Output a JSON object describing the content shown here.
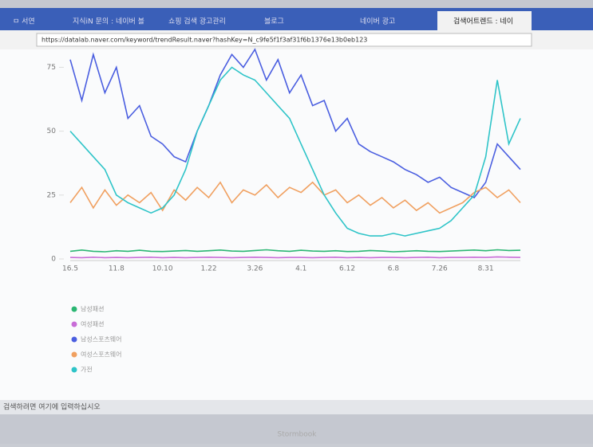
{
  "browser": {
    "tabs": [
      "ㅁ 서연",
      "지식iN 문의 : 네이버 블",
      "쇼핑 검색 광고관리",
      "블로그",
      "네이버 광고",
      "검색어트렌드 : 네이"
    ],
    "url": "https://datalab.naver.com/keyword/trendResult.naver?hashKey=N_c9fe5f1f3af31f6b1376e13b0eb123"
  },
  "taskbar": {
    "search": "검색하려면 여기에 입력하십시오"
  },
  "bezel": {
    "brand": "Stormbook"
  },
  "chart_data": {
    "type": "line",
    "categories": [
      "16.5",
      null,
      null,
      null,
      "11.8",
      null,
      null,
      null,
      "10.10",
      null,
      null,
      null,
      "1.22",
      null,
      null,
      null,
      "3.26",
      null,
      null,
      null,
      "4.1",
      null,
      null,
      null,
      "6.12",
      null,
      null,
      null,
      "6.8",
      null,
      null,
      null,
      "7.26",
      null,
      null,
      null,
      "8.31",
      null,
      null,
      null
    ],
    "series": [
      {
        "name": "남성패션",
        "color": "#2bb673",
        "values": [
          3,
          3.5,
          3,
          2.8,
          3.2,
          3,
          3.4,
          3,
          2.9,
          3.1,
          3.3,
          3,
          3.2,
          3.5,
          3.1,
          3,
          3.3,
          3.6,
          3.2,
          3,
          3.4,
          3.1,
          3,
          3.2,
          2.9,
          3,
          3.3,
          3.1,
          2.8,
          3,
          3.2,
          3,
          2.9,
          3.1,
          3.3,
          3.5,
          3.2,
          3.6,
          3.3,
          3.4
        ]
      },
      {
        "name": "여성패션",
        "color": "#c86dd7",
        "values": [
          0.6,
          0.5,
          0.7,
          0.5,
          0.6,
          0.5,
          0.6,
          0.7,
          0.5,
          0.6,
          0.5,
          0.6,
          0.7,
          0.6,
          0.5,
          0.6,
          0.7,
          0.6,
          0.5,
          0.6,
          0.6,
          0.5,
          0.6,
          0.7,
          0.5,
          0.6,
          0.5,
          0.6,
          0.6,
          0.5,
          0.6,
          0.7,
          0.5,
          0.6,
          0.6,
          0.7,
          0.6,
          0.8,
          0.7,
          0.6
        ]
      },
      {
        "name": "남성스포츠웨어",
        "color": "#4a5ee0",
        "values": [
          78,
          62,
          80,
          65,
          75,
          55,
          60,
          48,
          45,
          40,
          38,
          50,
          60,
          72,
          80,
          75,
          82,
          70,
          78,
          65,
          72,
          60,
          62,
          50,
          55,
          45,
          42,
          40,
          38,
          35,
          33,
          30,
          32,
          28,
          26,
          24,
          30,
          45,
          40,
          35
        ]
      },
      {
        "name": "여성스포츠웨어",
        "color": "#f0a060",
        "values": [
          22,
          28,
          20,
          27,
          21,
          25,
          22,
          26,
          19,
          27,
          23,
          28,
          24,
          30,
          22,
          27,
          25,
          29,
          24,
          28,
          26,
          30,
          25,
          27,
          22,
          25,
          21,
          24,
          20,
          23,
          19,
          22,
          18,
          20,
          22,
          26,
          28,
          24,
          27,
          22
        ]
      },
      {
        "name": "가전",
        "color": "#2ec4c8",
        "values": [
          50,
          45,
          40,
          35,
          25,
          22,
          20,
          18,
          20,
          25,
          35,
          50,
          60,
          70,
          75,
          72,
          70,
          65,
          60,
          55,
          45,
          35,
          25,
          18,
          12,
          10,
          9,
          9,
          10,
          9,
          10,
          11,
          12,
          15,
          20,
          25,
          40,
          70,
          45,
          55
        ]
      }
    ],
    "ylim": [
      0,
      82
    ],
    "yticks": [
      0,
      25,
      50,
      75
    ],
    "grid": false
  }
}
